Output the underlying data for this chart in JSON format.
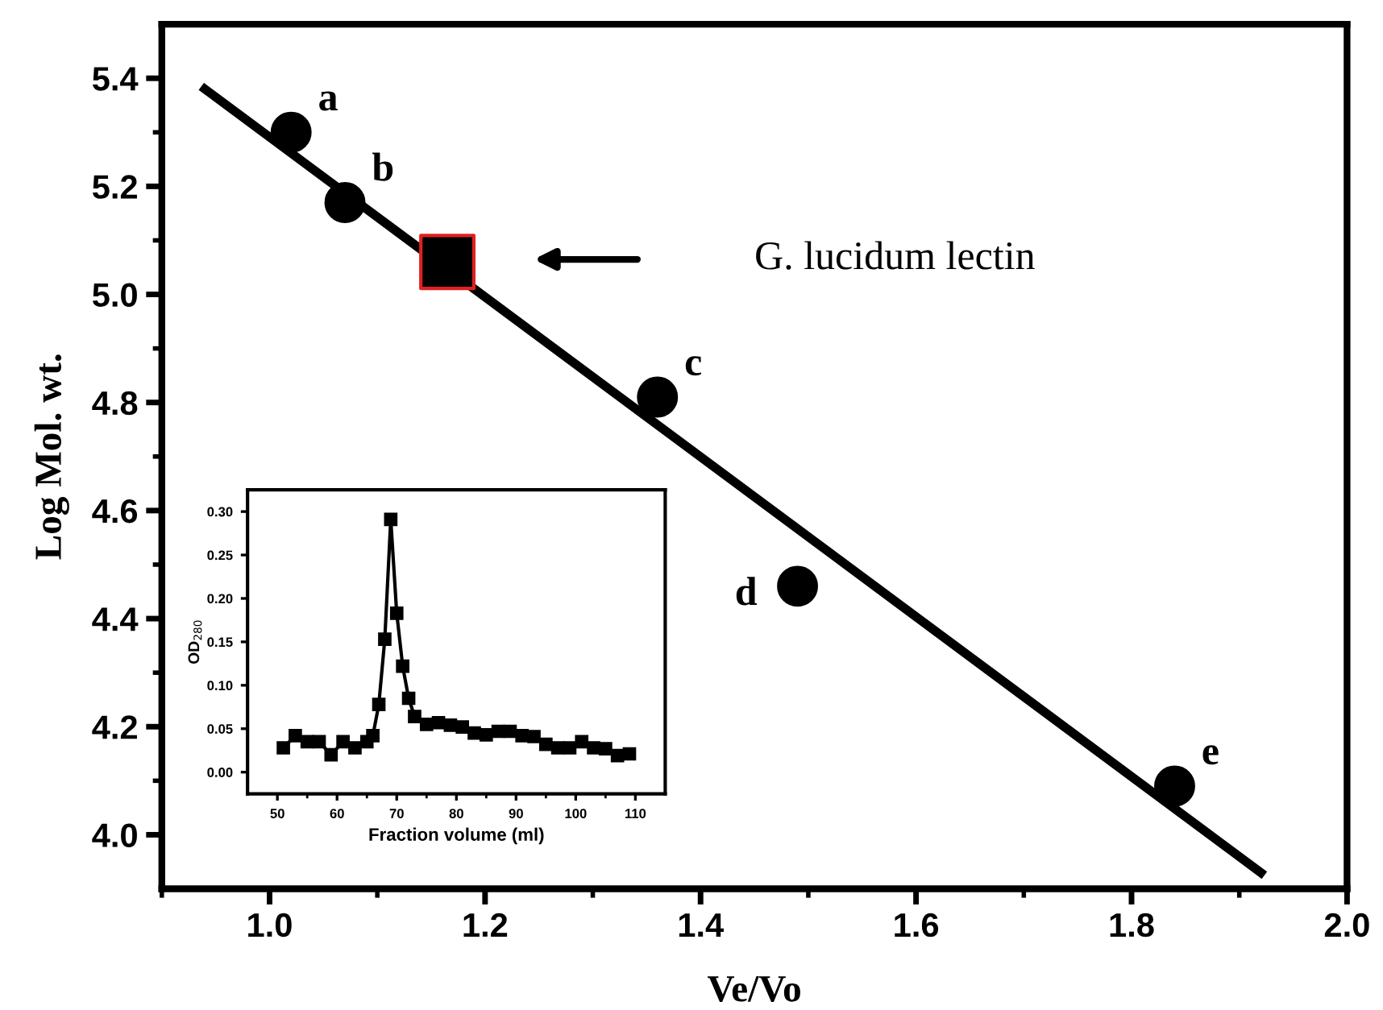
{
  "chart_data": [
    {
      "type": "scatter",
      "xlabel": "Ve/Vo",
      "ylabel": "Log Mol. wt.",
      "xlim": [
        0.9,
        2.0
      ],
      "ylim": [
        3.9,
        5.5
      ],
      "xticks": [
        {
          "value": 0.9,
          "label": null
        },
        {
          "value": 1.0,
          "label": "1.0"
        },
        {
          "value": 1.1,
          "label": null
        },
        1.2,
        {
          "value": 1.3,
          "label": null
        },
        1.4,
        {
          "value": 1.5,
          "label": null
        },
        1.6,
        {
          "value": 1.7,
          "label": null
        },
        1.8,
        {
          "value": 1.9,
          "label": null
        },
        {
          "value": 2.0,
          "label": "2.0"
        }
      ],
      "yticks": [
        {
          "value": 4.0,
          "label": "4.0"
        },
        {
          "value": 4.1,
          "label": null
        },
        4.2,
        {
          "value": 4.3,
          "label": null
        },
        4.4,
        {
          "value": 4.5,
          "label": null
        },
        4.6,
        {
          "value": 4.7,
          "label": null
        },
        4.8,
        {
          "value": 4.9,
          "label": null
        },
        {
          "value": 5.0,
          "label": "5.0"
        },
        {
          "value": 5.1,
          "label": null
        },
        5.2,
        {
          "value": 5.3,
          "label": null
        },
        5.4
      ],
      "series": [
        {
          "type": "line",
          "color": "#000000",
          "marker": "none",
          "x": [
            0.94,
            1.92
          ],
          "values": [
            5.38,
            3.93
          ]
        },
        {
          "type": "scatter",
          "color": "#000000",
          "marker": "circle",
          "x": [
            1.02,
            1.07,
            1.36,
            1.49,
            1.84
          ],
          "values": [
            5.3,
            5.17,
            4.81,
            4.46,
            4.09
          ]
        },
        {
          "type": "scatter",
          "color": "#000000",
          "marker": "square",
          "x": [
            1.165
          ],
          "values": [
            5.06
          ]
        }
      ],
      "annotations": [
        {
          "text": "a",
          "x": 1.02,
          "y": 5.3
        },
        {
          "text": "b",
          "x": 1.07,
          "y": 5.17
        },
        {
          "text": "c",
          "x": 1.36,
          "y": 4.81
        },
        {
          "text": "d",
          "x": 1.49,
          "y": 4.46
        },
        {
          "text": "e",
          "x": 1.84,
          "y": 4.09
        },
        "G. lucidum lectin"
      ]
    },
    {
      "type": "line",
      "marker": "square",
      "xlabel": "Fraction volume (ml)",
      "ylabel": "OD$_{280}$",
      "xlim": [
        45,
        115
      ],
      "ylim": [
        -0.025,
        0.325
      ],
      "xticks": [
        50,
        {
          "value": 55,
          "label": null
        },
        60,
        {
          "value": 65,
          "label": null
        },
        70,
        {
          "value": 75,
          "label": null
        },
        80,
        {
          "value": 85,
          "label": null
        },
        90,
        {
          "value": 95,
          "label": null
        },
        100,
        {
          "value": 105,
          "label": null
        },
        110
      ],
      "yticks": [
        {
          "value": 0,
          "label": "0.00"
        },
        {
          "value": 0.05,
          "label": "0.05"
        },
        {
          "value": 0.1,
          "label": "0.10"
        },
        {
          "value": 0.15,
          "label": "0.15"
        },
        {
          "value": 0.2,
          "label": "0.20"
        },
        {
          "value": 0.25,
          "label": "0.25"
        },
        {
          "value": 0.3,
          "label": "0.30"
        }
      ],
      "series": [
        {
          "color": "#000000",
          "x": [
            51,
            53,
            55,
            57,
            59,
            61,
            63,
            65,
            66,
            67,
            68,
            69,
            70,
            71,
            72,
            73,
            75,
            77,
            79,
            81,
            83,
            85,
            87,
            89,
            91,
            93,
            95,
            97,
            99,
            101,
            103,
            105,
            107,
            109
          ],
          "values": [
            0.028,
            0.042,
            0.035,
            0.035,
            0.02,
            0.035,
            0.028,
            0.035,
            0.042,
            0.078,
            0.153,
            0.291,
            0.183,
            0.122,
            0.085,
            0.064,
            0.055,
            0.057,
            0.054,
            0.052,
            0.045,
            0.043,
            0.047,
            0.047,
            0.042,
            0.041,
            0.032,
            0.028,
            0.028,
            0.035,
            0.028,
            0.027,
            0.019,
            0.021
          ]
        }
      ]
    }
  ]
}
